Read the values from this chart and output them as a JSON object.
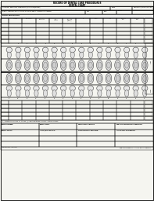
{
  "bg_color": "#f5f5f0",
  "title_line1": "RECORD OF DENTAL CARE PROCEDURES",
  "title_line2": "DENTAL CHART",
  "upper_teeth": [
    1,
    2,
    3,
    4,
    5,
    6,
    7,
    8,
    9,
    10,
    11,
    12,
    13,
    14,
    15,
    16
  ],
  "lower_teeth": [
    17,
    18,
    19,
    20,
    21,
    22,
    23,
    24,
    25,
    26,
    27,
    28,
    29,
    30,
    31,
    32
  ],
  "col_headers": [
    "1-Crown",
    "2-Periapical",
    "3-Furcation",
    "4/5-\nComposite",
    "6/7-Filling\n(Non-Metallic)",
    "8-xx",
    "9-Porcelain",
    "10-xx",
    "Receding\nGum",
    "Receding\nBone"
  ],
  "obs_label": "DENTAL OBSERVATIONS",
  "obs_col_headers": [
    "1-Present",
    "2-Periapical",
    "3-Furcation",
    "4/5-Composite",
    "6/7-Filling",
    "8-xx",
    "9-Porcelain",
    "10-xx",
    "Receding\nGum",
    "Receding\nBone"
  ],
  "bottom_labels_r1": [
    "DENTIST NUMBER:",
    "DENTAL CLINIC:",
    "PRACTITIONER ID NUMBER:",
    "PERIOD OF EXAMINATION OR TREATMENT:"
  ],
  "bottom_labels_r2": [
    "DENTAL OFFICER:",
    "INITIALS/DATE OF EXAM:",
    "CLASSIFICATION OF ORAL EXAM:",
    "IRREGULARITY OF ALIGNMENT:"
  ],
  "form_number": "DD FORM 601, 1 FEB 1532",
  "replaces_text": "REPLACES DD FORM 601, 1 APR 74, WHICH IS OBSOLETE."
}
